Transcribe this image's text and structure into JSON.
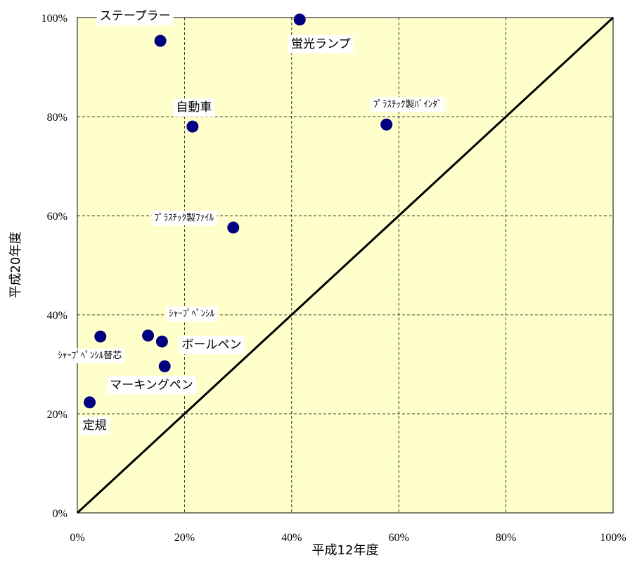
{
  "chart_data": {
    "type": "scatter",
    "xlabel": "平成12年度",
    "ylabel": "平成20年度",
    "xlim": [
      0,
      100
    ],
    "ylim": [
      0,
      100
    ],
    "x_ticks": [
      "0%",
      "20%",
      "40%",
      "60%",
      "80%",
      "100%"
    ],
    "y_ticks": [
      "0%",
      "20%",
      "40%",
      "60%",
      "80%",
      "100%"
    ],
    "grid": true,
    "reference_line": {
      "from": [
        0,
        0
      ],
      "to": [
        100,
        100
      ]
    },
    "colors": {
      "plot_background": "#ffffcc",
      "marker": "#000080",
      "grid": "#000000",
      "reference_line": "#000000"
    },
    "points": [
      {
        "label": "ステープラー",
        "x": 15.5,
        "y": 95.3
      },
      {
        "label": "蛍光ランプ",
        "x": 41.5,
        "y": 99.6
      },
      {
        "label": "自動車",
        "x": 21.5,
        "y": 78.0
      },
      {
        "label": "ﾌﾟﾗｽﾁｯｸ製ﾊﾞｲﾝﾀﾞ",
        "x": 57.7,
        "y": 78.4
      },
      {
        "label": "ﾌﾟﾗｽﾁｯｸ製ﾌｧｲﾙ",
        "x": 29.1,
        "y": 57.6
      },
      {
        "label": "ｼｬｰﾌﾟﾍﾟﾝｼﾙ",
        "x": 13.2,
        "y": 35.8
      },
      {
        "label": "ボールペン",
        "x": 15.8,
        "y": 34.6
      },
      {
        "label": "ｼｬｰﾌﾟﾍﾟﾝｼﾙ替芯",
        "x": 4.3,
        "y": 35.6
      },
      {
        "label": "マーキングペン",
        "x": 16.3,
        "y": 29.6
      },
      {
        "label": "定規",
        "x": 2.3,
        "y": 22.3
      }
    ]
  }
}
